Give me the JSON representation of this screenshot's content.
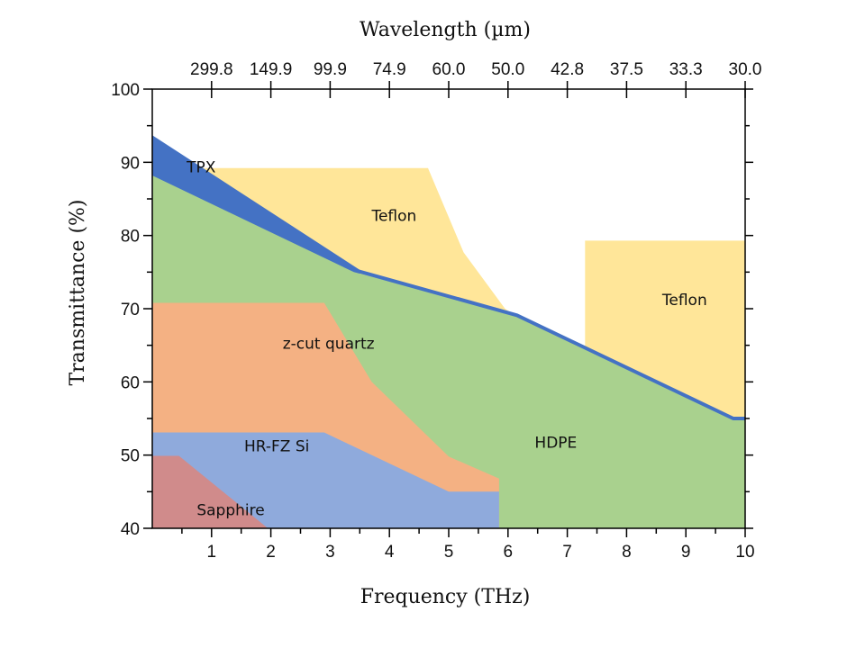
{
  "chart_data": {
    "type": "area",
    "title": "",
    "xlabel": "Frequency (THz)",
    "ylabel": "Transmittance (%)",
    "x2label": "Wavelength (µm)",
    "xlim": [
      0,
      10
    ],
    "ylim": [
      40,
      100
    ],
    "x_ticks": [
      "1",
      "2",
      "3",
      "4",
      "5",
      "6",
      "7",
      "8",
      "9",
      "10"
    ],
    "y_ticks": [
      "40",
      "50",
      "60",
      "70",
      "80",
      "90",
      "100"
    ],
    "x2_ticks": [
      "299.8",
      "149.9",
      "99.9",
      "74.9",
      "60.0",
      "50.0",
      "42.8",
      "37.5",
      "33.3",
      "30.0"
    ],
    "series": [
      {
        "name": "Teflon",
        "color": "#FFE699",
        "points": [
          [
            0.0,
            89.2
          ],
          [
            4.65,
            89.2
          ],
          [
            5.25,
            77.7
          ],
          [
            5.95,
            70.0
          ],
          [
            6.18,
            68.8
          ],
          [
            6.18,
            40.0
          ],
          [
            0.0,
            40.0
          ]
        ]
      },
      {
        "name": "Teflon",
        "color": "#FFE699",
        "points": [
          [
            7.3,
            79.3
          ],
          [
            10.0,
            79.3
          ],
          [
            10.0,
            40.0
          ],
          [
            7.3,
            40.0
          ]
        ]
      },
      {
        "name": "TPX",
        "color": "#4472C4",
        "points": [
          [
            0.0,
            93.7
          ],
          [
            3.5,
            75.3
          ],
          [
            3.5,
            40.0
          ],
          [
            0.0,
            40.0
          ]
        ]
      },
      {
        "name": "HDPE",
        "color": "#A9D18E",
        "points": [
          [
            0.0,
            88.2
          ],
          [
            3.4,
            75.0
          ],
          [
            6.15,
            69.1
          ],
          [
            9.8,
            55.0
          ],
          [
            10.0,
            55.0
          ],
          [
            10.0,
            40.0
          ],
          [
            0.0,
            40.0
          ]
        ]
      },
      {
        "name": "z-cut quartz",
        "color": "#F4B183",
        "points": [
          [
            0.0,
            70.8
          ],
          [
            2.9,
            70.8
          ],
          [
            3.7,
            60.0
          ],
          [
            5.0,
            49.8
          ],
          [
            5.85,
            46.8
          ],
          [
            5.85,
            40.0
          ],
          [
            0.0,
            40.0
          ]
        ]
      },
      {
        "name": "HR-FZ Si",
        "color": "#8FAADC",
        "points": [
          [
            0.0,
            53.1
          ],
          [
            2.9,
            53.1
          ],
          [
            5.0,
            45.0
          ],
          [
            5.85,
            45.0
          ],
          [
            5.85,
            40.0
          ],
          [
            0.0,
            40.0
          ]
        ]
      },
      {
        "name": "Sapphire",
        "color": "#D08B8B",
        "points": [
          [
            0.0,
            49.9
          ],
          [
            0.45,
            49.9
          ],
          [
            1.95,
            40.0
          ],
          [
            0.0,
            40.0
          ]
        ]
      }
    ],
    "boundary_line": {
      "name": "HDPE",
      "color": "#4472C4",
      "points": [
        [
          3.4,
          75.3
        ],
        [
          6.15,
          69.1
        ],
        [
          9.8,
          55.0
        ],
        [
          10.0,
          55.0
        ]
      ]
    },
    "annotations": [
      {
        "text": "TPX",
        "x": 0.58,
        "y": 88.6
      },
      {
        "text": "Teflon",
        "x": 3.7,
        "y": 82.0
      },
      {
        "text": "Teflon",
        "x": 8.6,
        "y": 70.5
      },
      {
        "text": "z-cut quartz",
        "x": 2.2,
        "y": 64.5
      },
      {
        "text": "HDPE",
        "x": 6.45,
        "y": 51.0
      },
      {
        "text": "HR-FZ Si",
        "x": 1.55,
        "y": 50.5
      },
      {
        "text": "Sapphire",
        "x": 0.75,
        "y": 41.8
      }
    ]
  }
}
